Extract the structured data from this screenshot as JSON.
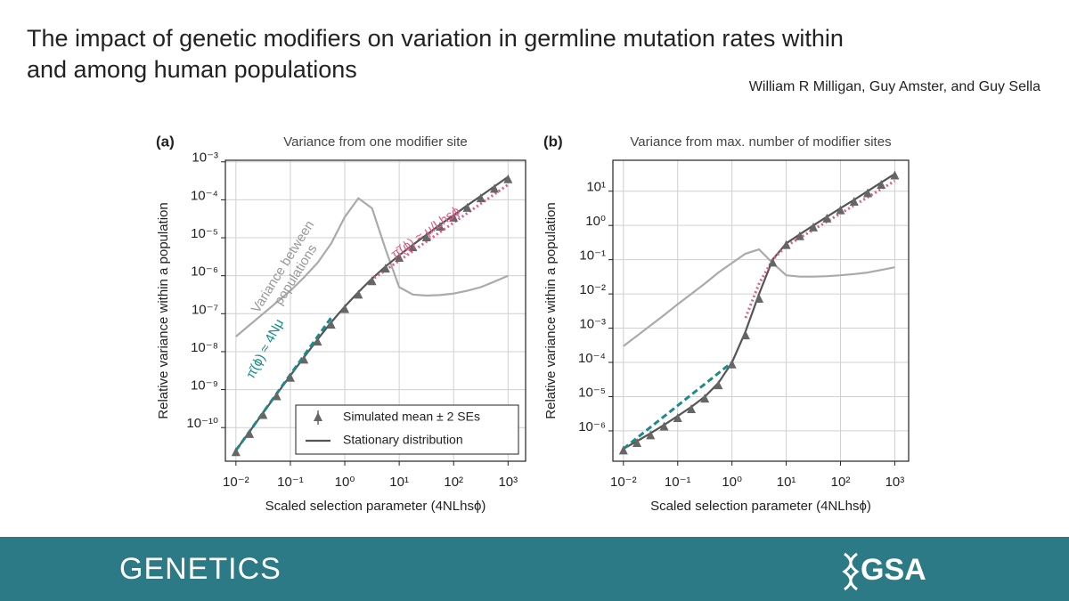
{
  "slide": {
    "title": [
      "The impact of genetic modifiers on variation in germline mutation rates within",
      "and among human populations"
    ],
    "authors": "William R Milligan, Guy Amster, and Guy Sella",
    "journal": "GENETICS",
    "society": "GSA"
  },
  "chart_data": [
    {
      "type": "line",
      "panel": "(a)",
      "title": "Variance from one modifier site",
      "x_label": "Scaled selection parameter (4NLhsϕ)",
      "y_label": "Relative variance within a population",
      "xscale": "log",
      "yscale": "log",
      "grid": true,
      "legend": "lower right",
      "xlim": [
        0.0064,
        2100
      ],
      "ylim": [
        1.3e-11,
        0.0011
      ],
      "xticks": [
        {
          "value": 0.01,
          "label": "10⁻²"
        },
        {
          "value": 0.1,
          "label": "10⁻¹"
        },
        {
          "value": 1,
          "label": "10⁰"
        },
        {
          "value": 10,
          "label": "10¹"
        },
        {
          "value": 100,
          "label": "10²"
        },
        {
          "value": 1000,
          "label": "10³"
        }
      ],
      "yticks": [
        {
          "value": 1e-10,
          "label": "10⁻¹⁰"
        },
        {
          "value": 1e-09,
          "label": "10⁻⁹"
        },
        {
          "value": 1e-08,
          "label": "10⁻⁸"
        },
        {
          "value": 1e-07,
          "label": "10⁻⁷"
        },
        {
          "value": 1e-06,
          "label": "10⁻⁶"
        },
        {
          "value": 1e-05,
          "label": "10⁻⁵"
        },
        {
          "value": 0.0001,
          "label": "10⁻⁴"
        },
        {
          "value": 0.001,
          "label": "10⁻³"
        }
      ],
      "x": [
        0.01,
        0.0178,
        0.0316,
        0.0562,
        0.1,
        0.178,
        0.316,
        0.562,
        1,
        1.78,
        3.16,
        5.62,
        10,
        17.8,
        31.6,
        56.2,
        100,
        178,
        316,
        562,
        1000
      ],
      "series": [
        {
          "style": "line",
          "color": "#aaaaaa",
          "values": [
            2.5e-08,
            5e-08,
            1e-07,
            2e-07,
            4e-07,
            9e-07,
            2.2e-06,
            7e-06,
            3.5e-05,
            0.00011,
            6e-05,
            5e-06,
            5e-07,
            3.2e-07,
            3e-07,
            3.1e-07,
            3.4e-07,
            4e-07,
            5e-07,
            7e-07,
            1e-06
          ]
        },
        {
          "name": "Stationary distribution",
          "style": "line",
          "color": "#555555",
          "values": [
            2.5e-11,
            7.8e-11,
            2.45e-10,
            7.6e-10,
            2.35e-09,
            7.1e-09,
            2.1e-08,
            5.9e-08,
            1.54e-07,
            3.7e-07,
            8.4e-07,
            1.75e-06,
            3.45e-06,
            6.5e-06,
            1.2e-05,
            2.2e-05,
            3.9e-05,
            7.1e-05,
            0.000126,
            0.000225,
            0.0004
          ]
        },
        {
          "style": "dashed",
          "color": "#1a8a8a",
          "x": [
            0.01,
            0.562
          ],
          "values": [
            2.5e-11,
            7.8e-08
          ]
        },
        {
          "style": "dotted",
          "color": "#e05a8a",
          "x": [
            3,
            1000
          ],
          "values": [
            7.5e-07,
            0.00025
          ]
        },
        {
          "name": "Simulated mean ± 2 SEs",
          "style": "markers",
          "color": "#666666",
          "values": [
            2.2e-11,
            6.6e-11,
            2.1e-10,
            6.5e-10,
            2e-09,
            6e-09,
            1.8e-08,
            5e-08,
            1.3e-07,
            3.1e-07,
            7e-07,
            1.5e-06,
            2.9e-06,
            5.5e-06,
            1e-05,
            1.9e-05,
            3.3e-05,
            6e-05,
            0.000107,
            0.00019,
            0.00034
          ]
        }
      ],
      "annotations": [
        {
          "text": [
            "Variance between",
            "populations"
          ],
          "color": "#999999"
        },
        {
          "text": [
            "π̄(ϕ) ≈ 4Nμ"
          ],
          "color": "#1a8a8a"
        },
        {
          "text": [
            "π̄(ϕ) ≈ μ/Lhsϕ"
          ],
          "color": "#e05a8a"
        }
      ]
    },
    {
      "type": "line",
      "panel": "(b)",
      "title": "Variance from max. number of modifier sites",
      "x_label": "Scaled selection parameter (4NLhsϕ)",
      "y_label": "Relative variance within a population",
      "xscale": "log",
      "yscale": "log",
      "grid": true,
      "xlim": [
        0.0064,
        1800
      ],
      "ylim": [
        1.3e-07,
        80
      ],
      "xticks": [
        {
          "value": 0.01,
          "label": "10⁻²"
        },
        {
          "value": 0.1,
          "label": "10⁻¹"
        },
        {
          "value": 1,
          "label": "10⁰"
        },
        {
          "value": 10,
          "label": "10¹"
        },
        {
          "value": 100,
          "label": "10²"
        },
        {
          "value": 1000,
          "label": "10³"
        }
      ],
      "yticks": [
        {
          "value": 1e-06,
          "label": "10⁻⁶"
        },
        {
          "value": 1e-05,
          "label": "10⁻⁵"
        },
        {
          "value": 0.0001,
          "label": "10⁻⁴"
        },
        {
          "value": 0.001,
          "label": "10⁻³"
        },
        {
          "value": 0.01,
          "label": "10⁻²"
        },
        {
          "value": 0.1,
          "label": "10⁻¹"
        },
        {
          "value": 1,
          "label": "10⁰"
        },
        {
          "value": 10,
          "label": "10¹"
        }
      ],
      "x": [
        0.01,
        0.0178,
        0.0316,
        0.0562,
        0.1,
        0.178,
        0.316,
        0.562,
        1,
        1.78,
        3.16,
        5.62,
        10,
        17.8,
        31.6,
        56.2,
        100,
        178,
        316,
        562,
        1000
      ],
      "series": [
        {
          "style": "line",
          "color": "#aaaaaa",
          "values": [
            0.0003,
            0.0006,
            0.0012,
            0.0024,
            0.005,
            0.01,
            0.02,
            0.042,
            0.08,
            0.15,
            0.2,
            0.08,
            0.035,
            0.032,
            0.032,
            0.033,
            0.035,
            0.038,
            0.042,
            0.05,
            0.06
          ]
        },
        {
          "style": "line",
          "color": "#555555",
          "values": [
            3e-07,
            5e-07,
            8.5e-07,
            1.5e-06,
            2.7e-06,
            5e-06,
            1e-05,
            2.5e-05,
            0.0001,
            0.0008,
            0.01,
            0.1,
            0.3,
            0.55,
            1,
            1.8,
            3.2,
            5.6,
            10,
            18,
            32
          ]
        },
        {
          "style": "dashed",
          "color": "#1a8a8a",
          "x": [
            0.01,
            1
          ],
          "values": [
            3e-07,
            0.0001
          ]
        },
        {
          "style": "dotted",
          "color": "#e05a8a",
          "x": [
            1.78,
            3.16,
            5.62,
            10,
            1000
          ],
          "values": [
            0.002,
            0.02,
            0.1,
            0.25,
            20
          ]
        },
        {
          "style": "markers",
          "color": "#666666",
          "values": [
            2.6e-07,
            4.3e-07,
            7.2e-07,
            1.3e-06,
            2.3e-06,
            4.2e-06,
            8.5e-06,
            2.1e-05,
            8.5e-05,
            0.0006,
            0.007,
            0.08,
            0.26,
            0.47,
            0.85,
            1.55,
            2.7,
            4.8,
            8.5,
            15,
            28
          ]
        }
      ]
    }
  ]
}
